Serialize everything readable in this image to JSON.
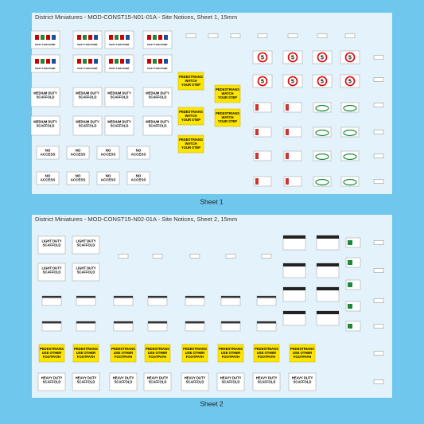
{
  "sheets": [
    {
      "title": "District Miniatures - MOD-CONST15-N01-01A - Site Notices, Sheet 1, 15mm",
      "caption": "Sheet 1"
    },
    {
      "title": "District Miniatures - MOD-CONST15-N02-01A - Site Notices, Sheet 2, 15mm",
      "caption": "Sheet 2"
    }
  ],
  "signs": {
    "ppe": "PAST THIS POINT",
    "medium_duty": [
      "MEDIUM DUTY",
      "SCAFFOLD"
    ],
    "light_duty": [
      "LIGHT DUTY",
      "SCAFFOLD"
    ],
    "heavy_duty": [
      "HEAVY DUTY",
      "SCAFFOLD"
    ],
    "no_access": [
      "NO",
      "ACCESS"
    ],
    "watch_step": [
      "PEDESTRIANS",
      "WATCH",
      "YOUR STEP"
    ],
    "other_footpath": [
      "PEDESTRIANS",
      "USE OTHER",
      "FOOTPATH"
    ],
    "speed": "5"
  }
}
